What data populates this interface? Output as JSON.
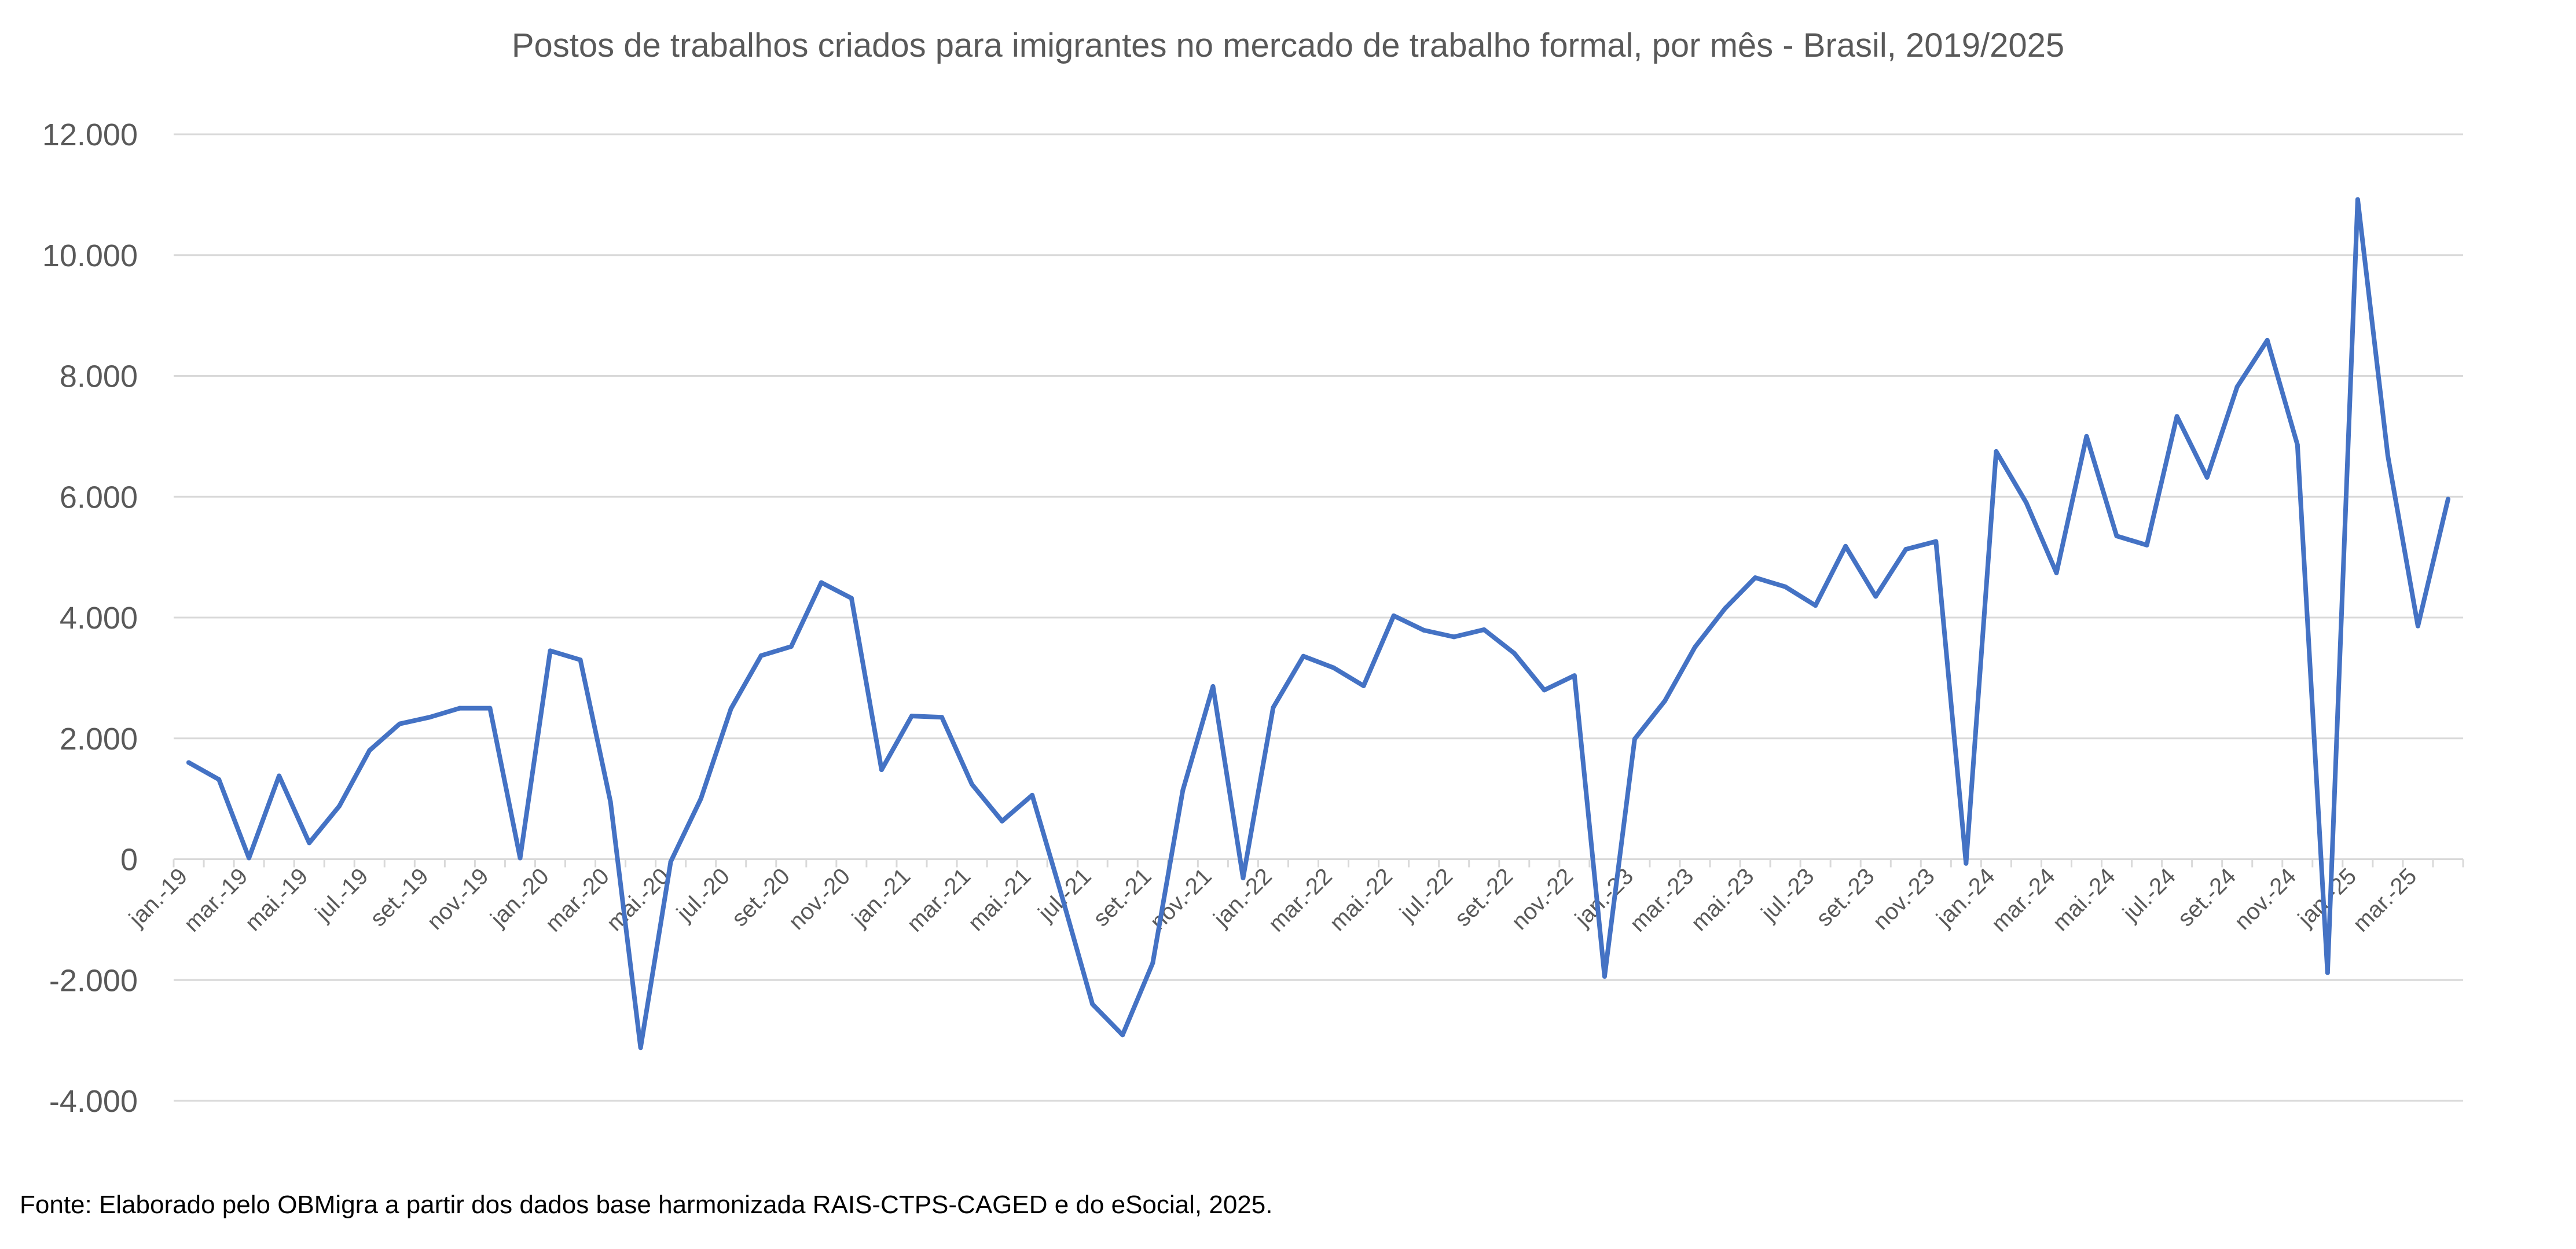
{
  "chart_data": {
    "type": "line",
    "title": "Postos de trabalhos criados para imigrantes no mercado de trabalho formal, por mês - Brasil, 2019/2025",
    "source": "Fonte: Elaborado pelo OBMigra a partir dos dados base harmonizada RAIS-CTPS-CAGED e do eSocial, 2025.",
    "xlabel": "",
    "ylabel": "",
    "ylim": [
      -4000,
      12000
    ],
    "yticks": [
      -4000,
      -2000,
      0,
      2000,
      4000,
      6000,
      8000,
      10000,
      12000
    ],
    "ytick_labels": [
      "-4.000",
      "-2.000",
      "0",
      "2.000",
      "4.000",
      "6.000",
      "8.000",
      "10.000",
      "12.000"
    ],
    "grid": true,
    "legend": "none",
    "categories": [
      "jan.-19",
      "fev.-19",
      "mar.-19",
      "abr.-19",
      "mai.-19",
      "jun.-19",
      "jul.-19",
      "ago.-19",
      "set.-19",
      "out.-19",
      "nov.-19",
      "dez.-19",
      "jan.-20",
      "fev.-20",
      "mar.-20",
      "abr.-20",
      "mai.-20",
      "jun.-20",
      "jul.-20",
      "ago.-20",
      "set.-20",
      "out.-20",
      "nov.-20",
      "dez.-20",
      "jan.-21",
      "fev.-21",
      "mar.-21",
      "abr.-21",
      "mai.-21",
      "jun.-21",
      "jul.-21",
      "ago.-21",
      "set.-21",
      "out.-21",
      "nov.-21",
      "dez.-21",
      "jan.-22",
      "fev.-22",
      "mar.-22",
      "abr.-22",
      "mai.-22",
      "jun.-22",
      "jul.-22",
      "ago.-22",
      "set.-22",
      "out.-22",
      "nov.-22",
      "dez.-22",
      "jan.-23",
      "fev.-23",
      "mar.-23",
      "abr.-23",
      "mai.-23",
      "jun.-23",
      "jul.-23",
      "ago.-23",
      "set.-23",
      "out.-23",
      "nov.-23",
      "dez.-23",
      "jan.-24",
      "fev.-24",
      "mar.-24",
      "abr.-24",
      "mai.-24",
      "jun.-24",
      "jul.-24",
      "ago.-24",
      "set.-24",
      "out.-24",
      "nov.-24",
      "dez.-24",
      "jan.-25",
      "fev.-25",
      "mar.-25",
      "abr.-25"
    ],
    "x_tick_labels_shown": [
      "jan.-19",
      "mar.-19",
      "mai.-19",
      "jul.-19",
      "set.-19",
      "nov.-19",
      "jan.-20",
      "mar.-20",
      "mai.-20",
      "jul.-20",
      "set.-20",
      "nov.-20",
      "jan.-21",
      "mar.-21",
      "mai.-21",
      "jul.-21",
      "set.-21",
      "nov.-21",
      "jan.-22",
      "mar.-22",
      "mai.-22",
      "jul.-22",
      "set.-22",
      "nov.-22",
      "jan.-23",
      "mar.-23",
      "mai.-23",
      "jul.-23",
      "set.-23",
      "nov.-23",
      "jan.-24",
      "mar.-24",
      "mai.-24",
      "jul.-24",
      "set.-24",
      "nov.-24",
      "jan.-25",
      "mar.-25"
    ],
    "series": [
      {
        "name": "Postos de trabalho",
        "color": "#4472c4",
        "values": [
          1600,
          1320,
          20,
          1380,
          270,
          880,
          1800,
          2240,
          2350,
          2500,
          2500,
          20,
          3450,
          3300,
          950,
          -3120,
          -40,
          1000,
          2490,
          3370,
          3520,
          4580,
          4320,
          1480,
          2370,
          2350,
          1240,
          630,
          1060,
          -640,
          -2400,
          -2910,
          -1720,
          1140,
          2860,
          -310,
          2510,
          3360,
          3170,
          2870,
          4030,
          3790,
          3680,
          3800,
          3410,
          2800,
          3040,
          -1940,
          1990,
          2620,
          3510,
          4150,
          4660,
          4510,
          4200,
          5180,
          4350,
          5130,
          5260,
          -70,
          6750,
          5900,
          4740,
          7000,
          5350,
          5200,
          7330,
          6320,
          7820,
          8590,
          6860,
          -1880,
          10920,
          6680,
          3860,
          5960
        ]
      }
    ]
  }
}
